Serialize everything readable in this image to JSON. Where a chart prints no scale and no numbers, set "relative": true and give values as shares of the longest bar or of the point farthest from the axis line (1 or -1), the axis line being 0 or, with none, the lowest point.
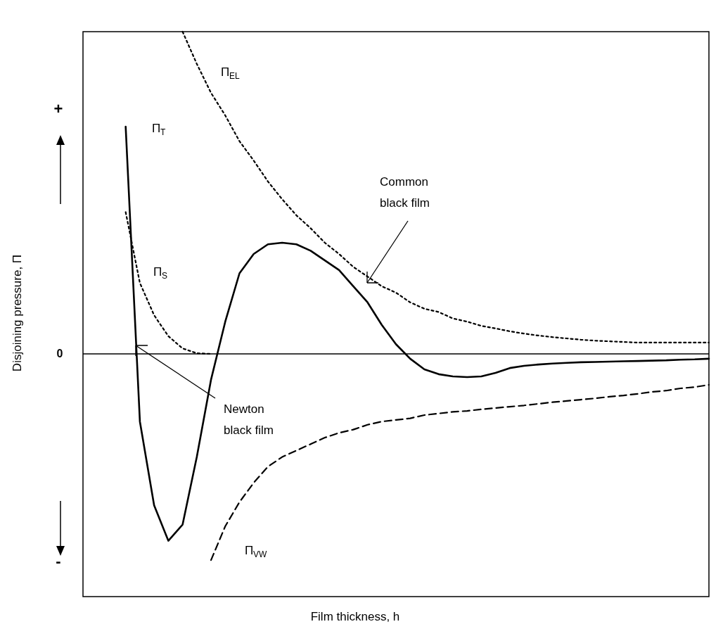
{
  "chart_data": {
    "type": "line",
    "relative": true,
    "xlabel": "Film thickness, h",
    "ylabel": "Disjoining pressure, Π",
    "categories": [
      null,
      null,
      null,
      null,
      null,
      null,
      null,
      null,
      null,
      null,
      null,
      null,
      null,
      null,
      null,
      null,
      null,
      null,
      null,
      null,
      null,
      null,
      null,
      null,
      null,
      null,
      null,
      null,
      null,
      null,
      null,
      null,
      null,
      null,
      null,
      null,
      null,
      null,
      null,
      null,
      null,
      null,
      null,
      null,
      null
    ],
    "series": [
      {
        "name": "Π$_{T}$",
        "color": "#000000",
        "line_style": "solid",
        "values": [
          null,
          null,
          null,
          0.705,
          -0.21,
          -0.47,
          -0.58,
          -0.53,
          -0.32,
          -0.08,
          0.1,
          0.25,
          0.31,
          0.34,
          0.345,
          0.34,
          0.32,
          0.29,
          0.26,
          0.21,
          0.16,
          0.09,
          0.03,
          -0.015,
          -0.048,
          -0.063,
          -0.07,
          -0.072,
          -0.07,
          -0.059,
          -0.044,
          -0.037,
          -0.033,
          -0.03,
          -0.028,
          -0.026,
          -0.025,
          -0.024,
          -0.023,
          -0.022,
          -0.021,
          -0.02,
          -0.018,
          -0.017,
          -0.015
        ]
      },
      {
        "name": "Π$_{S}$",
        "color": "#000000",
        "line_style": "dotted",
        "values": [
          null,
          null,
          null,
          0.44,
          0.22,
          0.12,
          0.055,
          0.017,
          0.002,
          0,
          null,
          null,
          null,
          null,
          null,
          null,
          null,
          null,
          null,
          null,
          null,
          null,
          null,
          null,
          null,
          null,
          null,
          null,
          null,
          null,
          null,
          null,
          null,
          null,
          null,
          null,
          null,
          null,
          null,
          null,
          null,
          null,
          null,
          null,
          null
        ]
      },
      {
        "name": "Π$_{EL}$",
        "color": "#000000",
        "line_style": "dotted",
        "values": [
          null,
          null,
          null,
          null,
          null,
          null,
          null,
          1,
          0.9,
          0.81,
          0.74,
          0.66,
          0.6,
          0.535,
          0.48,
          0.43,
          0.39,
          0.345,
          0.31,
          0.27,
          0.24,
          0.21,
          0.19,
          0.16,
          0.14,
          0.13,
          0.11,
          0.1,
          0.087,
          0.079,
          0.07,
          0.063,
          0.057,
          0.052,
          0.048,
          0.044,
          0.041,
          0.039,
          0.037,
          0.035,
          0.035,
          0.035,
          0.035,
          0.035,
          0.035
        ]
      },
      {
        "name": "Π$_{VW}$",
        "color": "#000000",
        "line_style": "dashed",
        "values": [
          null,
          null,
          null,
          null,
          null,
          null,
          null,
          null,
          null,
          -0.64,
          -0.535,
          -0.46,
          -0.4,
          -0.35,
          -0.32,
          -0.3,
          -0.28,
          -0.26,
          -0.245,
          -0.235,
          -0.22,
          -0.21,
          -0.205,
          -0.2,
          -0.19,
          -0.185,
          -0.18,
          -0.177,
          -0.172,
          -0.168,
          -0.164,
          -0.16,
          -0.155,
          -0.15,
          -0.146,
          -0.142,
          -0.138,
          -0.133,
          -0.129,
          -0.124,
          -0.118,
          -0.114,
          -0.107,
          -0.103,
          -0.096
        ]
      }
    ],
    "ref_lines": [
      {
        "axis": "y",
        "value": 0,
        "label": "0",
        "color": "#000000"
      }
    ],
    "annotations": [
      "Common black film",
      "Newton black film",
      "+",
      "-"
    ]
  }
}
